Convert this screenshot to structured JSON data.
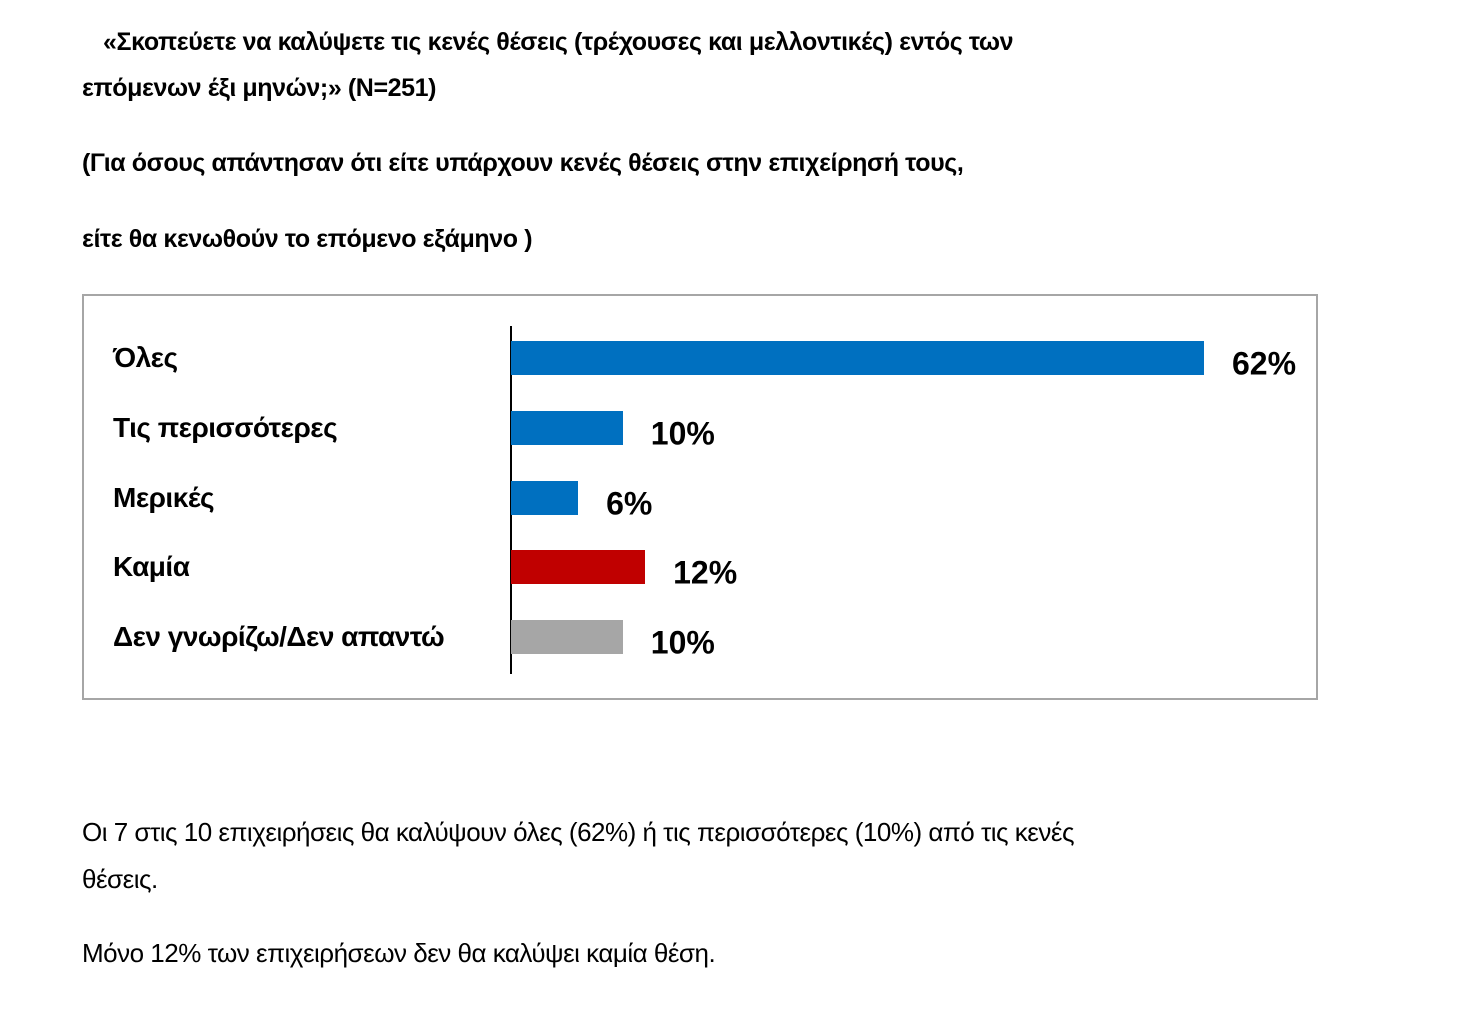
{
  "question": {
    "line1": "«Σκοπεύετε να καλύψετε τις κενές θέσεις (τρέχουσες και μελλοντικές) εντός των",
    "line2": "επόμενων έξι μηνών;» (N=251)",
    "note1": "(Για όσους απάντησαν ότι είτε υπάρχουν κενές θέσεις στην επιχείρησή τους,",
    "note2": "είτε θα κενωθούν το επόμενο εξάμηνο )"
  },
  "chart_data": {
    "type": "bar",
    "orientation": "horizontal",
    "categories": [
      "Όλες",
      "Τις περισσότερες",
      "Μερικές",
      "Καμία",
      "Δεν γνωρίζω/Δεν απαντώ"
    ],
    "values": [
      62,
      10,
      6,
      12,
      10
    ],
    "value_labels": [
      "62%",
      "10%",
      "6%",
      "12%",
      "10%"
    ],
    "colors": [
      "#0070c0",
      "#0070c0",
      "#0070c0",
      "#c00000",
      "#a6a6a6"
    ],
    "xlim": [
      0,
      62
    ],
    "grid": false,
    "title": "",
    "xlabel": "",
    "ylabel": ""
  },
  "summary": {
    "p1_line1": "Οι 7 στις 10 επιχειρήσεις θα καλύψουν όλες (62%) ή τις περισσότερες  (10%) από τις κενές",
    "p1_line2": "θέσεις.",
    "p2": "Μόνο 12% των επιχειρήσεων δεν θα καλύψει καμία θέση."
  }
}
